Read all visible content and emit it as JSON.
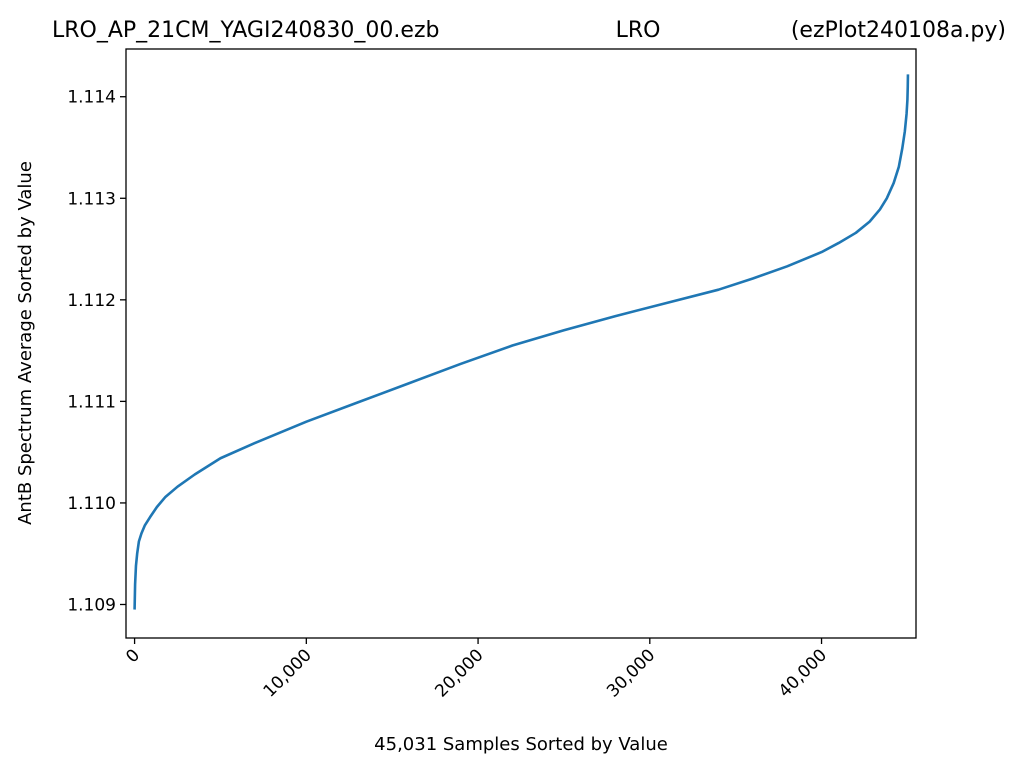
{
  "chart_data": {
    "type": "line",
    "title_left": "LRO_AP_21CM_YAGI240830_00.ezb",
    "title_center": "LRO",
    "title_right": "(ezPlot240108a.py)",
    "xlabel": "45,031 Samples Sorted by Value",
    "ylabel": "AntB Spectrum Average Sorted by Value",
    "xlim": [
      -500,
      45500
    ],
    "ylim": [
      1.10867,
      1.11447
    ],
    "x_ticks": [
      {
        "value": 0,
        "label": "0"
      },
      {
        "value": 10000,
        "label": "10,000"
      },
      {
        "value": 20000,
        "label": "20,000"
      },
      {
        "value": 30000,
        "label": "30,000"
      },
      {
        "value": 40000,
        "label": "40,000"
      }
    ],
    "y_ticks": [
      {
        "value": 1.109,
        "label": "1.109"
      },
      {
        "value": 1.11,
        "label": "1.110"
      },
      {
        "value": 1.111,
        "label": "1.111"
      },
      {
        "value": 1.112,
        "label": "1.112"
      },
      {
        "value": 1.113,
        "label": "1.113"
      },
      {
        "value": 1.114,
        "label": "1.114"
      }
    ],
    "grid": false,
    "line_color": "#1f77b4",
    "series": [
      {
        "x": [
          0,
          30,
          80,
          150,
          250,
          400,
          600,
          900,
          1300,
          1800,
          2500,
          3500,
          5000,
          7000,
          10000,
          13000,
          16000,
          19000,
          22000,
          25000,
          28000,
          31000,
          34000,
          36000,
          38000,
          40000,
          41000,
          42000,
          42800,
          43400,
          43800,
          44200,
          44500,
          44700,
          44850,
          44950,
          45000,
          45020,
          45031
        ],
        "y": [
          1.10895,
          1.1092,
          1.10938,
          1.1095,
          1.10962,
          1.1097,
          1.10978,
          1.10986,
          1.10996,
          1.11006,
          1.11016,
          1.11028,
          1.11044,
          1.11059,
          1.1108,
          1.11099,
          1.11118,
          1.11137,
          1.11155,
          1.1117,
          1.11184,
          1.11197,
          1.1121,
          1.11221,
          1.11233,
          1.11247,
          1.11256,
          1.11266,
          1.11277,
          1.11289,
          1.113,
          1.11315,
          1.11331,
          1.11349,
          1.11366,
          1.11383,
          1.11397,
          1.1141,
          1.11422
        ]
      }
    ]
  }
}
